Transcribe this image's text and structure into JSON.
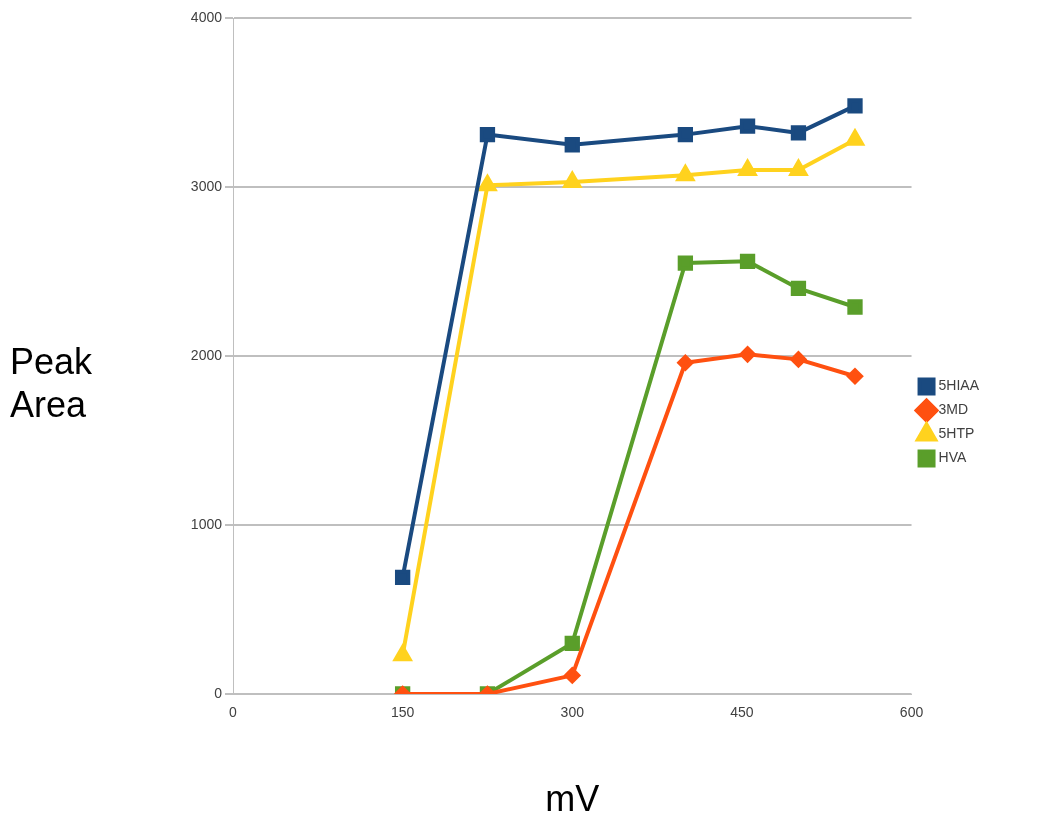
{
  "chart_data": {
    "type": "line",
    "xlabel": "mV",
    "ylabel": "Peak Area",
    "xlim": [
      0,
      600
    ],
    "xticks": [
      0,
      150,
      300,
      450,
      600
    ],
    "ylim": [
      0,
      4000
    ],
    "yticks": [
      0,
      1000,
      2000,
      3000,
      4000
    ],
    "grid": "y",
    "legend": "right",
    "line_style": "solid",
    "series": [
      {
        "name": "5HIAA",
        "color": "#1a4a80",
        "marker": "square",
        "x": [
          150,
          225,
          300,
          400,
          455,
          500,
          550
        ],
        "values": [
          690,
          3310,
          3250,
          3310,
          3360,
          3320,
          3480
        ]
      },
      {
        "name": "3MD",
        "color": "#ff5010",
        "marker": "diamond",
        "x": [
          150,
          225,
          300,
          400,
          455,
          500,
          550
        ],
        "values": [
          0,
          0,
          110,
          1960,
          2010,
          1980,
          1880
        ]
      },
      {
        "name": "5HTP",
        "color": "#ffd21e",
        "marker": "triangle",
        "x": [
          150,
          225,
          300,
          400,
          455,
          500,
          550
        ],
        "values": [
          230,
          3010,
          3030,
          3070,
          3100,
          3100,
          3280
        ]
      },
      {
        "name": "HVA",
        "color": "#5a9e2a",
        "marker": "square",
        "x": [
          150,
          225,
          300,
          400,
          455,
          500,
          550
        ],
        "values": [
          0,
          0,
          300,
          2550,
          2560,
          2400,
          2290
        ]
      }
    ]
  }
}
